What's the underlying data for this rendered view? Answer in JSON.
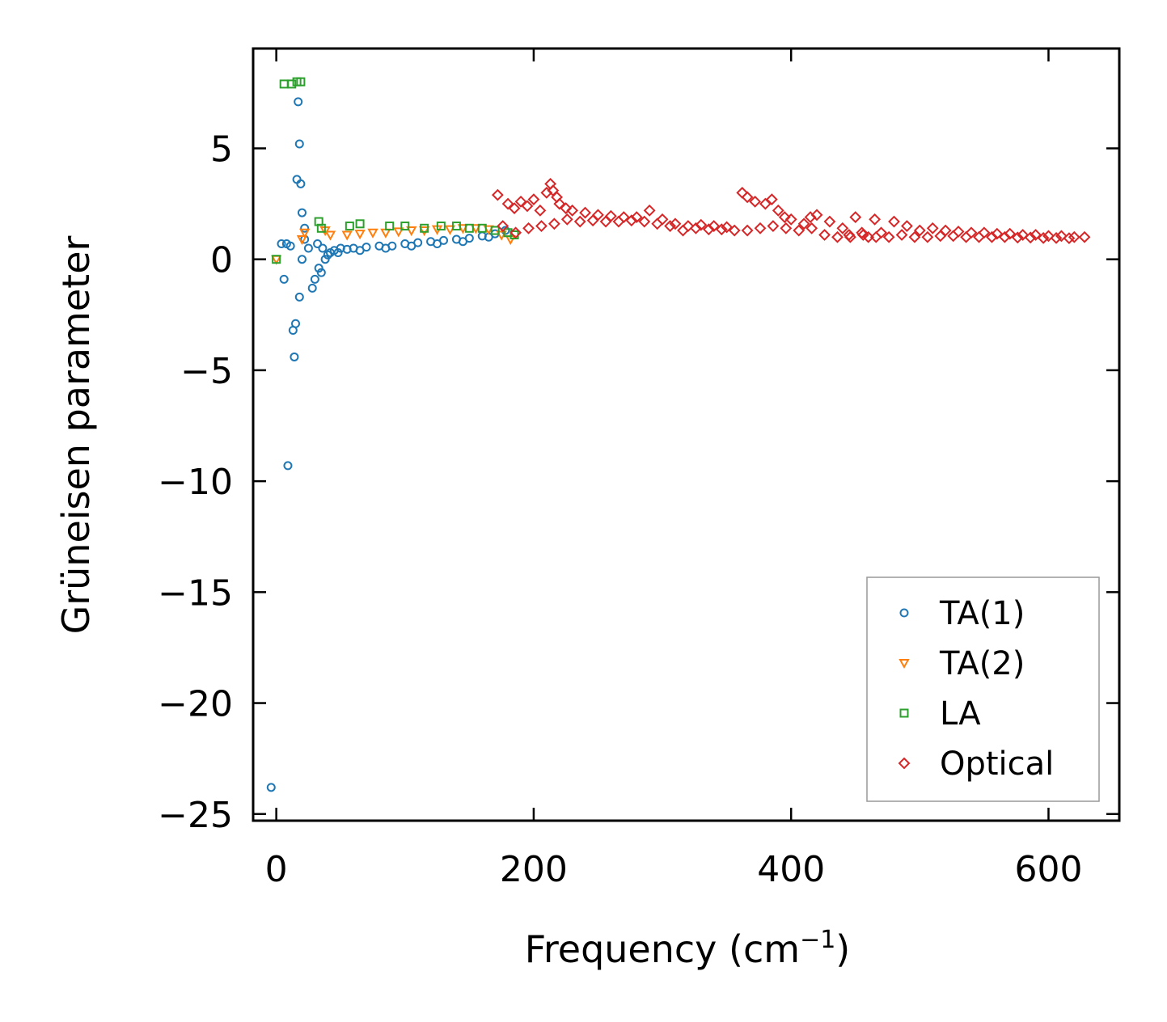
{
  "chart_data": {
    "type": "scatter",
    "title": "",
    "xlabel": "Frequency (cm",
    "xlabel_sup": "−1",
    "xlabel_end": ")",
    "ylabel": "Grüneisen parameter",
    "xlim": [
      -18,
      655
    ],
    "ylim": [
      -25.3,
      9.5
    ],
    "xticks": [
      0,
      200,
      400,
      600
    ],
    "xtick_labels": [
      "0",
      "200",
      "400",
      "600"
    ],
    "yticks": [
      5,
      0,
      -5,
      -10,
      -15,
      -20,
      -25
    ],
    "ytick_labels": [
      "5",
      "0",
      "−5",
      "−10",
      "−15",
      "−20",
      "−25"
    ],
    "legend_position": "lower-right",
    "series": [
      {
        "name": "TA(1)",
        "marker": "circle",
        "color": "#1f77b4",
        "points": [
          [
            -4,
            -23.8
          ],
          [
            9,
            -9.3
          ],
          [
            14,
            -4.4
          ],
          [
            15,
            -2.9
          ],
          [
            13,
            -3.2
          ],
          [
            18,
            -1.7
          ],
          [
            6,
            -0.9
          ],
          [
            22,
            0.9
          ],
          [
            20,
            0.0
          ],
          [
            4,
            0.7
          ],
          [
            8,
            0.7
          ],
          [
            11,
            0.6
          ],
          [
            16,
            3.6
          ],
          [
            17,
            7.1
          ],
          [
            18,
            5.2
          ],
          [
            19,
            3.4
          ],
          [
            20,
            2.1
          ],
          [
            22,
            1.4
          ],
          [
            25,
            0.5
          ],
          [
            28,
            -1.3
          ],
          [
            30,
            -0.9
          ],
          [
            33,
            -0.4
          ],
          [
            35,
            -0.6
          ],
          [
            38,
            0.0
          ],
          [
            40,
            0.2
          ],
          [
            42,
            0.3
          ],
          [
            45,
            0.4
          ],
          [
            50,
            0.5
          ],
          [
            55,
            0.45
          ],
          [
            60,
            0.5
          ],
          [
            70,
            0.55
          ],
          [
            80,
            0.6
          ],
          [
            90,
            0.6
          ],
          [
            100,
            0.7
          ],
          [
            110,
            0.75
          ],
          [
            120,
            0.8
          ],
          [
            130,
            0.85
          ],
          [
            140,
            0.9
          ],
          [
            150,
            0.95
          ],
          [
            160,
            1.05
          ],
          [
            170,
            1.15
          ],
          [
            178,
            1.3
          ],
          [
            32,
            0.7
          ],
          [
            36,
            0.5
          ],
          [
            48,
            0.3
          ],
          [
            65,
            0.4
          ],
          [
            85,
            0.5
          ],
          [
            105,
            0.6
          ],
          [
            125,
            0.7
          ],
          [
            145,
            0.8
          ],
          [
            165,
            1.0
          ]
        ]
      },
      {
        "name": "TA(2)",
        "marker": "triangle-down",
        "color": "#ff7f0e",
        "points": [
          [
            0,
            0.0
          ],
          [
            20,
            0.9
          ],
          [
            22,
            1.2
          ],
          [
            38,
            1.3
          ],
          [
            42,
            1.1
          ],
          [
            55,
            1.1
          ],
          [
            65,
            1.15
          ],
          [
            75,
            1.2
          ],
          [
            85,
            1.2
          ],
          [
            95,
            1.25
          ],
          [
            105,
            1.3
          ],
          [
            115,
            1.3
          ],
          [
            125,
            1.35
          ],
          [
            135,
            1.35
          ],
          [
            145,
            1.4
          ],
          [
            155,
            1.4
          ],
          [
            165,
            1.35
          ],
          [
            175,
            1.1
          ],
          [
            182,
            0.9
          ]
        ]
      },
      {
        "name": "LA",
        "marker": "square",
        "color": "#2ca02c",
        "points": [
          [
            0,
            0.0
          ],
          [
            6,
            7.9
          ],
          [
            12,
            7.9
          ],
          [
            16,
            8.0
          ],
          [
            19,
            8.0
          ],
          [
            33,
            1.7
          ],
          [
            35,
            1.4
          ],
          [
            57,
            1.5
          ],
          [
            65,
            1.6
          ],
          [
            88,
            1.5
          ],
          [
            100,
            1.5
          ],
          [
            115,
            1.4
          ],
          [
            128,
            1.5
          ],
          [
            140,
            1.5
          ],
          [
            150,
            1.4
          ],
          [
            160,
            1.4
          ],
          [
            170,
            1.3
          ],
          [
            180,
            1.2
          ],
          [
            185,
            1.1
          ]
        ]
      },
      {
        "name": "Optical",
        "marker": "diamond",
        "color": "#d62728",
        "points": [
          [
            172,
            2.9
          ],
          [
            180,
            2.5
          ],
          [
            185,
            2.3
          ],
          [
            190,
            2.6
          ],
          [
            195,
            2.4
          ],
          [
            200,
            2.7
          ],
          [
            205,
            2.2
          ],
          [
            210,
            3.0
          ],
          [
            213,
            3.4
          ],
          [
            215,
            3.1
          ],
          [
            218,
            2.8
          ],
          [
            220,
            2.5
          ],
          [
            225,
            2.3
          ],
          [
            230,
            2.2
          ],
          [
            240,
            2.1
          ],
          [
            250,
            2.0
          ],
          [
            260,
            1.95
          ],
          [
            270,
            1.9
          ],
          [
            280,
            1.9
          ],
          [
            290,
            2.2
          ],
          [
            300,
            1.8
          ],
          [
            310,
            1.6
          ],
          [
            320,
            1.5
          ],
          [
            330,
            1.55
          ],
          [
            340,
            1.5
          ],
          [
            350,
            1.45
          ],
          [
            362,
            3.0
          ],
          [
            366,
            2.8
          ],
          [
            372,
            2.6
          ],
          [
            380,
            2.5
          ],
          [
            385,
            2.7
          ],
          [
            390,
            2.2
          ],
          [
            395,
            1.9
          ],
          [
            400,
            1.8
          ],
          [
            410,
            1.6
          ],
          [
            415,
            1.9
          ],
          [
            420,
            2.0
          ],
          [
            430,
            1.7
          ],
          [
            440,
            1.4
          ],
          [
            445,
            1.1
          ],
          [
            450,
            1.9
          ],
          [
            455,
            1.2
          ],
          [
            460,
            1.0
          ],
          [
            465,
            1.8
          ],
          [
            470,
            1.2
          ],
          [
            480,
            1.7
          ],
          [
            490,
            1.5
          ],
          [
            500,
            1.3
          ],
          [
            510,
            1.4
          ],
          [
            520,
            1.3
          ],
          [
            530,
            1.25
          ],
          [
            540,
            1.2
          ],
          [
            550,
            1.2
          ],
          [
            560,
            1.15
          ],
          [
            570,
            1.15
          ],
          [
            580,
            1.1
          ],
          [
            590,
            1.1
          ],
          [
            600,
            1.05
          ],
          [
            610,
            1.05
          ],
          [
            620,
            1.0
          ],
          [
            628,
            1.0
          ],
          [
            176,
            1.5
          ],
          [
            186,
            1.2
          ],
          [
            196,
            1.4
          ],
          [
            206,
            1.5
          ],
          [
            216,
            1.6
          ],
          [
            226,
            1.8
          ],
          [
            236,
            1.7
          ],
          [
            246,
            1.75
          ],
          [
            256,
            1.7
          ],
          [
            266,
            1.7
          ],
          [
            276,
            1.75
          ],
          [
            286,
            1.7
          ],
          [
            296,
            1.6
          ],
          [
            306,
            1.5
          ],
          [
            316,
            1.3
          ],
          [
            326,
            1.4
          ],
          [
            336,
            1.35
          ],
          [
            346,
            1.35
          ],
          [
            356,
            1.3
          ],
          [
            366,
            1.3
          ],
          [
            376,
            1.4
          ],
          [
            386,
            1.5
          ],
          [
            396,
            1.4
          ],
          [
            406,
            1.3
          ],
          [
            416,
            1.4
          ],
          [
            426,
            1.1
          ],
          [
            436,
            1.0
          ],
          [
            446,
            1.0
          ],
          [
            456,
            1.1
          ],
          [
            466,
            1.0
          ],
          [
            476,
            1.0
          ],
          [
            486,
            1.1
          ],
          [
            496,
            1.0
          ],
          [
            506,
            1.0
          ],
          [
            516,
            1.05
          ],
          [
            526,
            1.05
          ],
          [
            536,
            1.0
          ],
          [
            546,
            1.0
          ],
          [
            556,
            1.0
          ],
          [
            566,
            1.0
          ],
          [
            576,
            0.98
          ],
          [
            586,
            0.98
          ],
          [
            596,
            0.96
          ],
          [
            606,
            0.96
          ],
          [
            616,
            0.95
          ]
        ]
      }
    ]
  }
}
